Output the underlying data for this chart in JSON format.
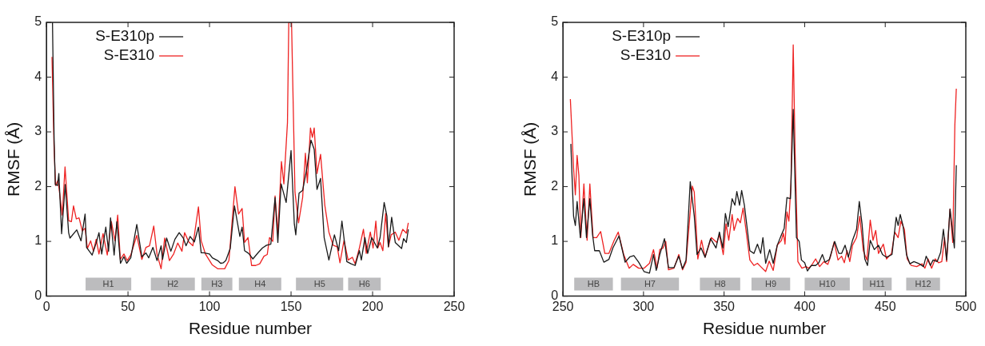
{
  "chart_data": [
    {
      "type": "line",
      "xlabel": "Residue number",
      "ylabel": "RMSF (Å)",
      "xlim": [
        0,
        250
      ],
      "xticks": [
        0,
        50,
        100,
        150,
        200,
        250
      ],
      "ylim": [
        0,
        5
      ],
      "yticks": [
        0,
        1,
        2,
        3,
        4,
        5
      ],
      "legend": "top left",
      "series": [
        {
          "name": "S-E310p",
          "color": "#1a1a1a",
          "x": [
            3.7,
            4.7,
            5.4,
            6.8,
            7.6,
            9.3,
            11.5,
            13.6,
            14.4,
            18.6,
            21.2,
            23.7,
            24.6,
            28,
            30.5,
            32.2,
            33.9,
            36.4,
            38.1,
            39.3,
            41.5,
            43.2,
            45.4,
            47.5,
            49.2,
            51.7,
            55.4,
            58.5,
            61,
            62.7,
            65.3,
            67.8,
            70.3,
            71.2,
            73.7,
            76.3,
            78.8,
            81.4,
            83.9,
            85.6,
            88.1,
            90.7,
            93.2,
            94.9,
            96.6,
            100,
            101.7,
            105,
            106.8,
            108.5,
            110,
            112.7,
            115.3,
            118.6,
            120,
            121.5,
            124,
            126.6,
            130,
            132.5,
            135,
            137.6,
            140.2,
            141.9,
            143.9,
            147,
            150,
            152,
            152.9,
            154.9,
            157.1,
            159.7,
            162.2,
            164.2,
            165.9,
            168.1,
            170.3,
            173.2,
            176.6,
            179.2,
            181.2,
            184.2,
            186.8,
            189.3,
            191.9,
            193.1,
            195.3,
            197,
            199.5,
            202.9,
            204.6,
            207.1,
            208.8,
            209.7,
            211.7,
            213.9,
            217.8,
            219,
            220.7,
            221.9
          ],
          "values": [
            5,
            2.88,
            2.04,
            2.02,
            2.24,
            1.14,
            2.04,
            1.16,
            1.06,
            1.21,
            1.01,
            1.5,
            0.89,
            0.75,
            0.97,
            1.16,
            0.77,
            1.26,
            0.82,
            1.43,
            0.75,
            1.36,
            0.6,
            0.72,
            0.6,
            0.7,
            1.31,
            0.72,
            0.79,
            0.7,
            0.89,
            0.65,
            0.92,
            0.67,
            1.06,
            0.82,
            1.04,
            1.16,
            1.06,
            0.92,
            1.09,
            0.99,
            1.26,
            0.79,
            0.79,
            0.77,
            0.7,
            0.65,
            0.6,
            0.61,
            0.65,
            0.87,
            1.65,
            1.09,
            1.26,
            0.83,
            0.78,
            0.68,
            0.8,
            0.88,
            0.93,
            0.95,
            1.8,
            0.98,
            2.05,
            1.71,
            2.66,
            1.32,
            1.12,
            1.88,
            1.93,
            2.34,
            2.85,
            2.68,
            1.95,
            2.15,
            1.07,
            0.66,
            1.12,
            0.83,
            1.37,
            0.63,
            0.59,
            0.56,
            0.83,
            0.66,
            1.07,
            0.78,
            1.07,
            0.88,
            1.07,
            1.71,
            1.46,
            0.9,
            1.44,
            0.98,
            0.87,
            1.05,
            0.98,
            1.22
          ]
        },
        {
          "name": "S-E310",
          "color": "#ee2222",
          "x": [
            3.4,
            4.6,
            5.6,
            7.1,
            9.7,
            11.4,
            13.6,
            15.3,
            16.6,
            18.3,
            20,
            22,
            23.7,
            25.1,
            27.1,
            28.8,
            30.5,
            32.2,
            34.7,
            37.3,
            39.8,
            42,
            43.7,
            45.3,
            47.5,
            49.5,
            51.7,
            55.4,
            58.5,
            61,
            63.2,
            65.8,
            67.8,
            70.3,
            72.5,
            75.4,
            78,
            80.5,
            83.1,
            84.7,
            87.3,
            89.8,
            93.2,
            94.9,
            97.5,
            101.7,
            105,
            109.3,
            111.9,
            115.6,
            117.8,
            120,
            121.5,
            123.6,
            125.8,
            128.3,
            130.8,
            133.4,
            135.4,
            136.8,
            138.8,
            140.2,
            141.9,
            144.1,
            145.6,
            147.8,
            148.6,
            150.3,
            152.4,
            154.6,
            157.1,
            158.8,
            160,
            161.9,
            163.1,
            164.2,
            165.9,
            168.1,
            170.7,
            173.2,
            175.8,
            178.3,
            180,
            182.5,
            185,
            187.6,
            189.3,
            191.9,
            194.4,
            196.1,
            198.6,
            200.3,
            202,
            203.2,
            204.6,
            206.3,
            208,
            209.7,
            211.4,
            213.9,
            216.1,
            218.5,
            220.7,
            221.9
          ],
          "values": [
            4.37,
            2.78,
            2.02,
            2.12,
            1.48,
            2.36,
            1.38,
            1.36,
            1.65,
            1.41,
            1.43,
            1.19,
            1.24,
            0.87,
            1.01,
            0.82,
            1.04,
            0.77,
            1.14,
            0.75,
            1.36,
            1.01,
            1.48,
            0.67,
            0.77,
            0.65,
            0.75,
            1.11,
            0.67,
            0.89,
            0.92,
            1.28,
            0.77,
            0.5,
            1.06,
            0.65,
            0.77,
            0.97,
            0.82,
            1.16,
            0.99,
            0.92,
            1.63,
            1.01,
            0.77,
            0.57,
            0.5,
            0.5,
            0.65,
            2.0,
            1.5,
            1.6,
            0.98,
            1.07,
            0.56,
            0.56,
            0.59,
            0.73,
            0.76,
            1.07,
            1.0,
            1.83,
            1.15,
            2.46,
            2.05,
            3.17,
            5,
            5,
            1.9,
            1.34,
            1.8,
            2.61,
            2.07,
            3.07,
            2.9,
            3.07,
            2.24,
            2.59,
            1.66,
            1.17,
            0.93,
            0.9,
            0.61,
            1.02,
            0.66,
            0.71,
            0.59,
            0.88,
            1.22,
            0.78,
            1.17,
            0.88,
            1.37,
            0.88,
            0.98,
            0.83,
            1.51,
            0.9,
            1.12,
            1.17,
            1.02,
            1.22,
            1.15,
            1.34
          ]
        }
      ],
      "bands": [
        {
          "axis": "x",
          "from": 24,
          "to": 52,
          "label": "H1",
          "color": "#bcbcbe"
        },
        {
          "axis": "x",
          "from": 64,
          "to": 91,
          "label": "H2",
          "color": "#bcbcbe"
        },
        {
          "axis": "x",
          "from": 95,
          "to": 114,
          "label": "H3",
          "color": "#bcbcbe"
        },
        {
          "axis": "x",
          "from": 118,
          "to": 144,
          "label": "H4",
          "color": "#bcbcbe"
        },
        {
          "axis": "x",
          "from": 153,
          "to": 182,
          "label": "H5",
          "color": "#bcbcbe"
        },
        {
          "axis": "x",
          "from": 185,
          "to": 205,
          "label": "H6",
          "color": "#bcbcbe"
        }
      ]
    },
    {
      "type": "line",
      "xlabel": "Residue number",
      "ylabel": "RMSF (Å)",
      "xlim": [
        250,
        500
      ],
      "xticks": [
        250,
        300,
        350,
        400,
        450,
        500
      ],
      "ylim": [
        0,
        5
      ],
      "yticks": [
        0,
        1,
        2,
        3,
        4,
        5
      ],
      "legend": "top left",
      "series": [
        {
          "name": "S-E310p",
          "color": "#1a1a1a",
          "x": [
            254.9,
            256.6,
            257.7,
            258.8,
            260.8,
            263,
            264.6,
            266.7,
            268.4,
            269.7,
            272.6,
            275.4,
            278.5,
            281,
            284.8,
            288.6,
            291.6,
            294,
            297,
            300.3,
            303.7,
            306.2,
            307.9,
            310.1,
            313,
            315.5,
            318.9,
            321.9,
            324.2,
            326.4,
            329,
            331.5,
            333.2,
            335.7,
            338.2,
            341.6,
            345,
            347.1,
            349.2,
            350.8,
            352.5,
            355,
            356.7,
            357.9,
            359.6,
            360.9,
            362.6,
            366,
            368.5,
            370.7,
            372.7,
            374.1,
            375.8,
            378.3,
            380.5,
            383,
            385.6,
            387.3,
            389,
            391.2,
            392.9,
            394.9,
            396.6,
            398,
            400,
            401.7,
            404.2,
            406.8,
            408.8,
            411,
            412.7,
            415.3,
            418.6,
            421.2,
            422.9,
            425.1,
            427.1,
            429.7,
            432.2,
            433.9,
            435.6,
            437.3,
            439,
            440.7,
            443.2,
            445.8,
            448.3,
            450.8,
            454.2,
            456.8,
            458,
            459.3,
            461,
            463.2,
            465.3,
            467.8,
            471.2,
            473.7,
            475.4,
            478,
            479.7,
            482.2,
            484.4,
            486.1,
            488.1,
            490.2,
            492.9,
            494.1
          ],
          "values": [
            2.78,
            1.46,
            1.29,
            1.73,
            1.07,
            1.78,
            1.07,
            1.78,
            1.12,
            0.83,
            0.83,
            0.62,
            0.67,
            0.88,
            1.1,
            0.62,
            0.72,
            0.74,
            0.62,
            0.45,
            0.42,
            0.76,
            0.47,
            0.76,
            1.05,
            0.52,
            0.52,
            0.73,
            0.5,
            0.66,
            2.09,
            1.46,
            0.76,
            0.88,
            0.71,
            1.05,
            0.88,
            1.17,
            0.88,
            1.51,
            1.27,
            1.78,
            1.66,
            1.91,
            1.66,
            1.93,
            1.66,
            0.83,
            0.78,
            0.95,
            0.78,
            1.07,
            0.6,
            0.85,
            0.6,
            0.93,
            1.12,
            1.24,
            1.8,
            1.78,
            3.41,
            1.07,
            1.0,
            0.66,
            0.61,
            0.46,
            0.56,
            0.56,
            0.61,
            0.76,
            0.62,
            0.67,
            1.0,
            0.78,
            0.78,
            0.93,
            0.71,
            1.02,
            1.22,
            1.73,
            1.32,
            0.68,
            0.56,
            1.02,
            0.85,
            0.93,
            0.76,
            0.71,
            0.76,
            1.44,
            1.29,
            1.49,
            1.29,
            0.76,
            0.59,
            0.63,
            0.59,
            0.54,
            0.73,
            0.56,
            0.66,
            0.63,
            0.8,
            1.22,
            0.66,
            1.59,
            0.88,
            2.39
          ]
        },
        {
          "name": "S-E310",
          "color": "#ee2222",
          "x": [
            254.6,
            256.6,
            257.7,
            258.8,
            259.9,
            261.1,
            263,
            265,
            266.7,
            268.7,
            270.9,
            273.4,
            276,
            278.5,
            281.8,
            284.3,
            287.7,
            291.1,
            293.6,
            297,
            300.3,
            303.7,
            306.2,
            308.4,
            310.1,
            312.1,
            313.8,
            315.5,
            318.9,
            321.9,
            324.2,
            326.4,
            330.3,
            331.5,
            333.7,
            336,
            338.2,
            342.1,
            345.5,
            347.1,
            349.5,
            351.2,
            352.9,
            355,
            356.2,
            358.4,
            360.1,
            361.8,
            366,
            368.5,
            370.7,
            372.7,
            375.8,
            378,
            380.5,
            383,
            385.6,
            386.8,
            387.8,
            389,
            390.2,
            391.5,
            392.9,
            394.1,
            395.8,
            398.3,
            400.8,
            402.5,
            404.2,
            406.8,
            409.3,
            411.9,
            414.4,
            416.1,
            418.3,
            420.7,
            422.9,
            424.6,
            426.3,
            428,
            429.7,
            432.2,
            434.2,
            436.4,
            438.6,
            440.7,
            442.4,
            444.1,
            445.8,
            448.8,
            450.8,
            453.9,
            455.9,
            458,
            459.7,
            461.9,
            463.6,
            466.1,
            469.5,
            472.9,
            474.6,
            476.6,
            478.8,
            481,
            483.1,
            485.1,
            486.8,
            488.1,
            490.2,
            491.9,
            493.2,
            494.1
          ],
          "values": [
            3.6,
            2.34,
            1.85,
            2.57,
            2.2,
            1.07,
            2.05,
            1.02,
            2.05,
            1.07,
            1.07,
            1.18,
            0.78,
            0.78,
            1.02,
            1.17,
            0.76,
            0.51,
            0.58,
            0.51,
            0.51,
            0.6,
            0.85,
            0.51,
            0.85,
            0.88,
            1.0,
            0.48,
            0.51,
            0.76,
            0.48,
            0.62,
            2.01,
            1.9,
            0.68,
            1.02,
            0.71,
            1.07,
            0.98,
            1.12,
            0.76,
            1.32,
            1.02,
            1.49,
            1.2,
            1.42,
            1.34,
            1.61,
            0.66,
            0.56,
            0.6,
            0.54,
            0.45,
            0.64,
            0.47,
            0.93,
            1.02,
            1.15,
            0.95,
            1.54,
            1.37,
            2.05,
            4.59,
            2.59,
            0.63,
            0.51,
            0.54,
            0.51,
            0.56,
            0.68,
            0.54,
            0.63,
            0.58,
            0.73,
            0.99,
            0.66,
            0.73,
            0.61,
            0.83,
            0.63,
            0.93,
            1.07,
            1.46,
            0.83,
            0.66,
            1.39,
            1.02,
            1.2,
            0.78,
            0.95,
            0.68,
            0.78,
            1.17,
            1.07,
            1.37,
            1.22,
            0.68,
            0.56,
            0.54,
            0.59,
            0.51,
            0.68,
            0.51,
            0.68,
            0.61,
            0.63,
            1.07,
            0.63,
            1.59,
            0.98,
            3.12,
            3.79
          ]
        }
      ],
      "bands": [
        {
          "axis": "x",
          "from": 257,
          "to": 281,
          "label": "HB",
          "color": "#bcbcbe"
        },
        {
          "axis": "x",
          "from": 286,
          "to": 322,
          "label": "H7",
          "color": "#bcbcbe"
        },
        {
          "axis": "x",
          "from": 335,
          "to": 360,
          "label": "H8",
          "color": "#bcbcbe"
        },
        {
          "axis": "x",
          "from": 367,
          "to": 391,
          "label": "H9",
          "color": "#bcbcbe"
        },
        {
          "axis": "x",
          "from": 400,
          "to": 428,
          "label": "H10",
          "color": "#bcbcbe"
        },
        {
          "axis": "x",
          "from": 436,
          "to": 454,
          "label": "H11",
          "color": "#bcbcbe"
        },
        {
          "axis": "x",
          "from": 463,
          "to": 484,
          "label": "H12",
          "color": "#bcbcbe"
        }
      ]
    }
  ]
}
